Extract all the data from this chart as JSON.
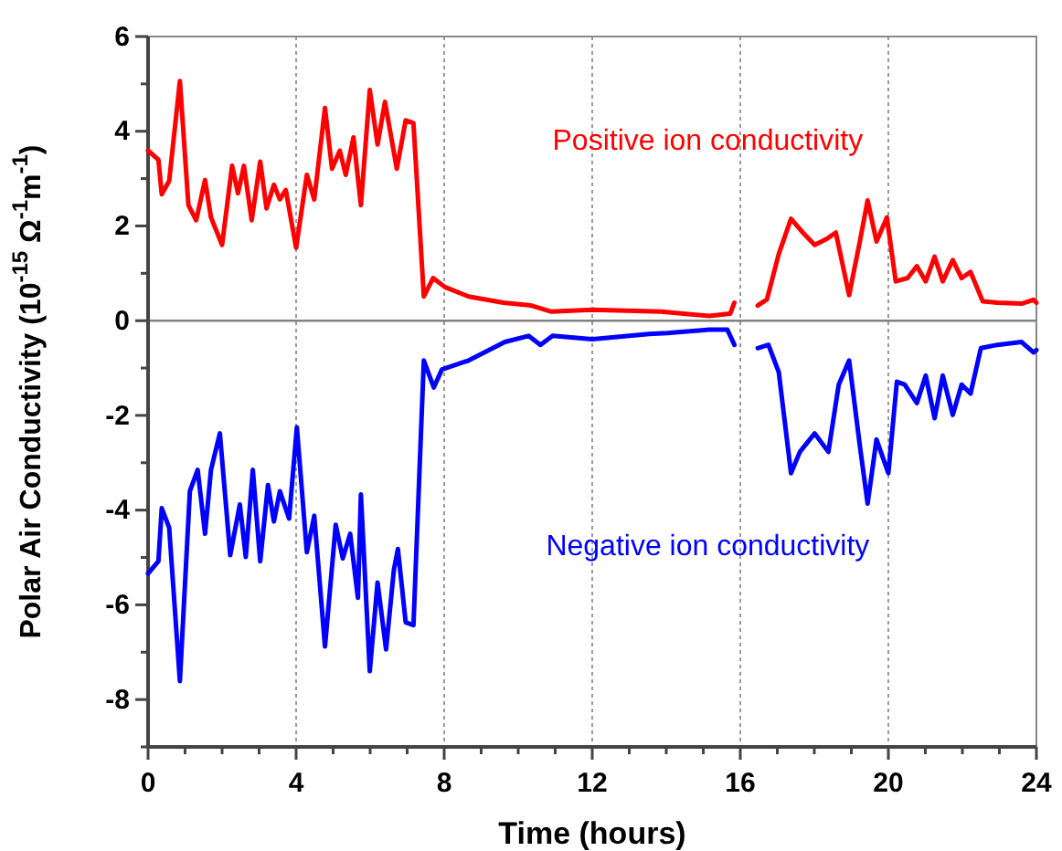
{
  "chart_data": {
    "type": "line",
    "xlabel": "Time (hours)",
    "ylabel": "Polar Air Conductivity (10$^{-15}$ Ω$^{-1}$m$^{-1}$)",
    "xlim": [
      0,
      24
    ],
    "ylim": [
      -9,
      6
    ],
    "xticks": [
      0,
      {
        "value": 1,
        "label": null
      },
      {
        "value": 2,
        "label": null
      },
      {
        "value": 3,
        "label": null
      },
      4,
      {
        "value": 5,
        "label": null
      },
      {
        "value": 6,
        "label": null
      },
      {
        "value": 7,
        "label": null
      },
      8,
      {
        "value": 9,
        "label": null
      },
      {
        "value": 10,
        "label": null
      },
      {
        "value": 11,
        "label": null
      },
      12,
      {
        "value": 13,
        "label": null
      },
      {
        "value": 14,
        "label": null
      },
      {
        "value": 15,
        "label": null
      },
      16,
      {
        "value": 17,
        "label": null
      },
      {
        "value": 18,
        "label": null
      },
      {
        "value": 19,
        "label": null
      },
      20,
      {
        "value": 21,
        "label": null
      },
      {
        "value": 22,
        "label": null
      },
      {
        "value": 23,
        "label": null
      },
      24
    ],
    "yticks": [
      {
        "value": -9,
        "label": null
      },
      -8,
      {
        "value": -7,
        "label": null
      },
      -6,
      {
        "value": -5,
        "label": null
      },
      -4,
      {
        "value": -3,
        "label": null
      },
      -2,
      {
        "value": -1,
        "label": null
      },
      0,
      {
        "value": 1,
        "label": null
      },
      2,
      {
        "value": 3,
        "label": null
      },
      4,
      {
        "value": 5,
        "label": null
      },
      6
    ],
    "grid": "x",
    "legend": false,
    "marker": "none",
    "line_style": "solid",
    "ref_lines": [
      {
        "axis": "y",
        "value": 0,
        "color": "#808080"
      }
    ],
    "series": [
      {
        "name": "Positive ion conductivity",
        "color": "#ff0000",
        "x": [
          0,
          0.28,
          0.37,
          0.57,
          0.86,
          1.09,
          1.3,
          1.54,
          1.7,
          2.0,
          2.27,
          2.43,
          2.59,
          2.8,
          3.03,
          3.2,
          3.4,
          3.56,
          3.72,
          4.0,
          4.29,
          4.49,
          4.78,
          4.97,
          5.18,
          5.34,
          5.55,
          5.75,
          5.99,
          6.2,
          6.4,
          6.72,
          6.96,
          7.17,
          7.45,
          7.7,
          8.02,
          8.66,
          9.6,
          10.35,
          10.9,
          12.0,
          13.86,
          15.16,
          15.73,
          15.84,
          16.0,
          16.47,
          16.72,
          17.04,
          17.37,
          17.69,
          18.01,
          18.34,
          18.58,
          18.94,
          19.23,
          19.44,
          19.68,
          19.96,
          20.2,
          20.52,
          20.77,
          21.01,
          21.25,
          21.47,
          21.74,
          21.98,
          22.22,
          22.55,
          22.95,
          23.6,
          23.92,
          24
        ],
        "values": [
          3.59,
          3.4,
          2.67,
          2.95,
          5.06,
          2.44,
          2.12,
          2.97,
          2.18,
          1.6,
          3.27,
          2.69,
          3.27,
          2.12,
          3.36,
          2.37,
          2.87,
          2.56,
          2.76,
          1.54,
          3.08,
          2.56,
          4.49,
          3.21,
          3.59,
          3.08,
          3.87,
          2.44,
          4.87,
          3.72,
          4.62,
          3.21,
          4.23,
          4.17,
          0.51,
          0.9,
          0.71,
          0.51,
          0.38,
          0.32,
          0.19,
          0.23,
          0.19,
          0.1,
          0.15,
          0.38,
          null,
          0.32,
          0.45,
          1.41,
          2.15,
          1.86,
          1.6,
          1.73,
          1.86,
          0.54,
          1.67,
          2.54,
          1.67,
          2.18,
          0.83,
          0.9,
          1.15,
          0.83,
          1.35,
          0.83,
          1.28,
          0.9,
          1.03,
          0.41,
          0.38,
          0.36,
          0.44,
          0.38
        ]
      },
      {
        "name": "Negative ion conductivity",
        "color": "#0000ff",
        "x": [
          0,
          0.28,
          0.37,
          0.57,
          0.86,
          1.13,
          1.34,
          1.54,
          1.7,
          1.94,
          2.22,
          2.48,
          2.64,
          2.83,
          3.03,
          3.24,
          3.4,
          3.56,
          3.81,
          4.02,
          4.29,
          4.49,
          4.78,
          5.07,
          5.26,
          5.46,
          5.67,
          5.75,
          5.99,
          6.2,
          6.43,
          6.64,
          6.75,
          6.96,
          7.17,
          7.45,
          7.72,
          7.94,
          8.66,
          9.64,
          10.28,
          10.6,
          10.93,
          12.0,
          13.54,
          14.03,
          15.16,
          15.65,
          15.84,
          16.1,
          16.47,
          16.76,
          17.04,
          17.37,
          17.61,
          18.01,
          18.38,
          18.66,
          18.94,
          19.23,
          19.44,
          19.68,
          20.0,
          20.23,
          20.44,
          20.77,
          21.01,
          21.25,
          21.47,
          21.74,
          21.98,
          22.22,
          22.5,
          22.95,
          23.6,
          23.92,
          24
        ],
        "values": [
          -5.34,
          -5.08,
          -3.96,
          -4.37,
          -7.61,
          -3.6,
          -3.15,
          -4.5,
          -3.15,
          -2.38,
          -4.95,
          -3.88,
          -4.99,
          -3.15,
          -5.08,
          -3.47,
          -4.24,
          -3.6,
          -4.18,
          -2.25,
          -4.89,
          -4.12,
          -6.88,
          -4.31,
          -5.02,
          -4.5,
          -5.85,
          -3.67,
          -7.4,
          -5.53,
          -6.94,
          -5.27,
          -4.82,
          -6.37,
          -6.43,
          -0.84,
          -1.41,
          -1.03,
          -0.84,
          -0.45,
          -0.32,
          -0.51,
          -0.32,
          -0.39,
          -0.28,
          -0.26,
          -0.19,
          -0.19,
          -0.51,
          null,
          -0.58,
          -0.51,
          -1.09,
          -3.22,
          -2.77,
          -2.38,
          -2.77,
          -1.35,
          -0.84,
          -2.64,
          -3.86,
          -2.51,
          -3.22,
          -1.29,
          -1.35,
          -1.74,
          -1.16,
          -2.06,
          -1.16,
          -1.99,
          -1.35,
          -1.54,
          -0.58,
          -0.51,
          -0.45,
          -0.67,
          -0.62
        ]
      }
    ]
  }
}
